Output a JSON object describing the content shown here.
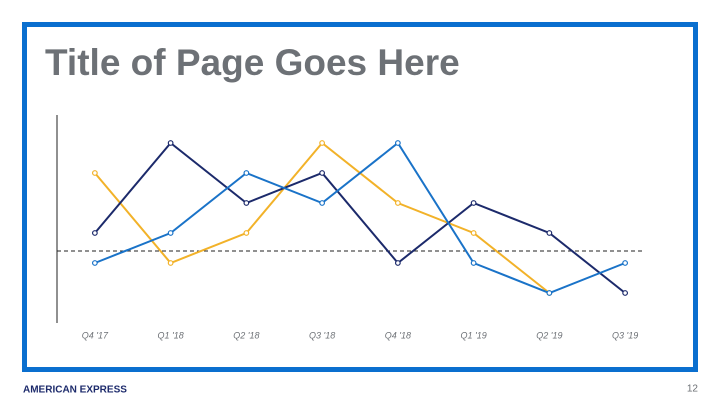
{
  "chart_data": {
    "type": "line",
    "title": "Title of Page Goes Here",
    "categories": [
      "Q4 '17",
      "Q1 '18",
      "Q2 '18",
      "Q3 '18",
      "Q4 '18",
      "Q1 '19",
      "Q2 '19",
      "Q3 '19"
    ],
    "series": [
      {
        "color": "#f2b229",
        "values": [
          5,
          2,
          3,
          6,
          4,
          3,
          1,
          null
        ]
      },
      {
        "color": "#1c2a6b",
        "values": [
          3,
          6,
          4,
          5,
          2,
          4,
          3,
          1
        ]
      },
      {
        "color": "#1a73c8",
        "values": [
          2,
          3,
          5,
          4,
          6,
          2,
          1,
          2
        ]
      }
    ],
    "ylim": [
      0,
      7
    ],
    "reference_line": 2.4
  },
  "footer": {
    "brand": "AMERICAN EXPRESS",
    "page_number": "12"
  }
}
